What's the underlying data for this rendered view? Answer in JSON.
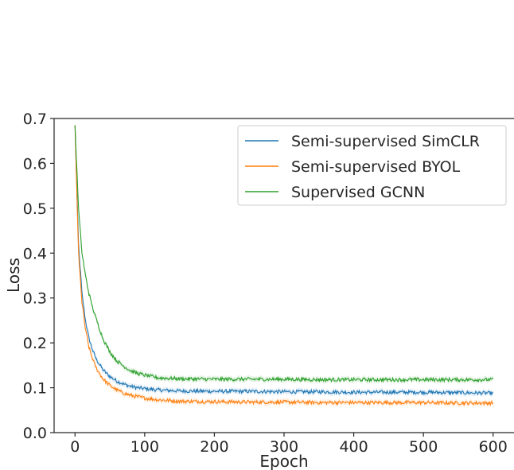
{
  "chart_data": {
    "type": "line",
    "title": "",
    "xlabel": "Epoch",
    "ylabel": "Loss",
    "xlim": [
      -30,
      630
    ],
    "ylim": [
      0.0,
      0.7
    ],
    "xticks": [
      "0",
      "100",
      "200",
      "300",
      "400",
      "500",
      "600"
    ],
    "xtick_values": [
      0,
      100,
      200,
      300,
      400,
      500,
      600
    ],
    "yticks": [
      "0.0",
      "0.1",
      "0.2",
      "0.3",
      "0.4",
      "0.5",
      "0.6",
      "0.7"
    ],
    "ytick_values": [
      0.0,
      0.1,
      0.2,
      0.3,
      0.4,
      0.5,
      0.6,
      0.7
    ],
    "grid": false,
    "legend_position": "top-right",
    "series": [
      {
        "name": "Semi-supervised SimCLR",
        "color": "#1f77b4",
        "x": [
          0,
          5,
          10,
          15,
          20,
          25,
          30,
          40,
          50,
          60,
          70,
          80,
          90,
          100,
          120,
          150,
          200,
          250,
          300,
          350,
          400,
          450,
          500,
          550,
          600
        ],
        "y": [
          0.685,
          0.42,
          0.31,
          0.25,
          0.21,
          0.185,
          0.165,
          0.14,
          0.125,
          0.115,
          0.108,
          0.103,
          0.1,
          0.098,
          0.095,
          0.093,
          0.092,
          0.092,
          0.091,
          0.091,
          0.09,
          0.09,
          0.09,
          0.089,
          0.088
        ]
      },
      {
        "name": "Semi-supervised BYOL",
        "color": "#ff7f0e",
        "x": [
          0,
          5,
          10,
          15,
          20,
          25,
          30,
          40,
          50,
          60,
          70,
          80,
          90,
          100,
          120,
          150,
          200,
          250,
          300,
          350,
          400,
          450,
          500,
          550,
          600
        ],
        "y": [
          0.685,
          0.4,
          0.29,
          0.23,
          0.19,
          0.165,
          0.145,
          0.12,
          0.105,
          0.095,
          0.088,
          0.083,
          0.08,
          0.077,
          0.073,
          0.07,
          0.069,
          0.068,
          0.068,
          0.067,
          0.067,
          0.067,
          0.067,
          0.066,
          0.066
        ]
      },
      {
        "name": "Supervised GCNN",
        "color": "#2ca02c",
        "x": [
          0,
          5,
          10,
          15,
          20,
          25,
          30,
          40,
          50,
          60,
          70,
          80,
          90,
          100,
          120,
          150,
          200,
          250,
          300,
          350,
          400,
          450,
          500,
          550,
          600
        ],
        "y": [
          0.685,
          0.5,
          0.4,
          0.35,
          0.31,
          0.28,
          0.255,
          0.21,
          0.18,
          0.16,
          0.148,
          0.138,
          0.132,
          0.128,
          0.122,
          0.12,
          0.119,
          0.119,
          0.119,
          0.118,
          0.118,
          0.118,
          0.118,
          0.118,
          0.118
        ]
      }
    ]
  }
}
